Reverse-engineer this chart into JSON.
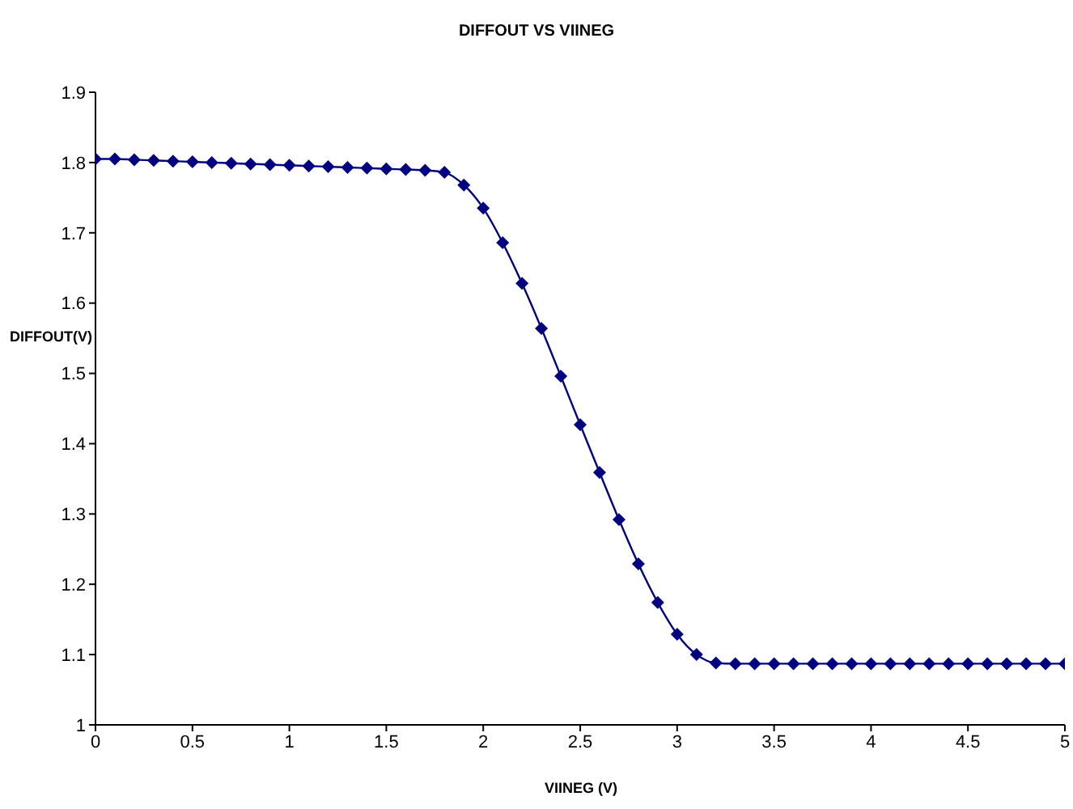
{
  "chart_data": {
    "type": "line",
    "title": "DIFFOUT VS VIINEG",
    "xlabel": "VIINEG (V)",
    "ylabel": "DIFFOUT(V)",
    "x": [
      0,
      0.1,
      0.2,
      0.3,
      0.4,
      0.5,
      0.6,
      0.7,
      0.8,
      0.9,
      1,
      1.1,
      1.2,
      1.3,
      1.4,
      1.5,
      1.6,
      1.7,
      1.8,
      1.9,
      2,
      2.1,
      2.2,
      2.3,
      2.4,
      2.5,
      2.6,
      2.7,
      2.8,
      2.9,
      3,
      3.1,
      3.2,
      3.3,
      3.4,
      3.5,
      3.6,
      3.7,
      3.8,
      3.9,
      4,
      4.1,
      4.2,
      4.3,
      4.4,
      4.5,
      4.6,
      4.7,
      4.8,
      4.9,
      5
    ],
    "series": [
      {
        "color": "#000080",
        "values": [
          1.805,
          1.805,
          1.804,
          1.803,
          1.802,
          1.801,
          1.8,
          1.799,
          1.798,
          1.797,
          1.796,
          1.795,
          1.794,
          1.793,
          1.792,
          1.791,
          1.79,
          1.789,
          1.786,
          1.768,
          1.735,
          1.686,
          1.628,
          1.564,
          1.496,
          1.427,
          1.359,
          1.292,
          1.229,
          1.174,
          1.129,
          1.1,
          1.088,
          1.087,
          1.087,
          1.087,
          1.087,
          1.087,
          1.087,
          1.087,
          1.087,
          1.087,
          1.087,
          1.087,
          1.087,
          1.087,
          1.087,
          1.087,
          1.087,
          1.087,
          1.087
        ]
      }
    ],
    "xlim": [
      0,
      5
    ],
    "xticks": [
      0,
      0.5,
      1,
      1.5,
      2,
      2.5,
      3,
      3.5,
      4,
      4.5,
      5
    ],
    "ylim": [
      1,
      1.9
    ],
    "yticks": [
      1,
      1.1,
      1.2,
      1.3,
      1.4,
      1.5,
      1.6,
      1.7,
      1.8,
      1.9
    ],
    "grid": false,
    "legend": false,
    "marker": "diamond",
    "line_style": "solid"
  }
}
